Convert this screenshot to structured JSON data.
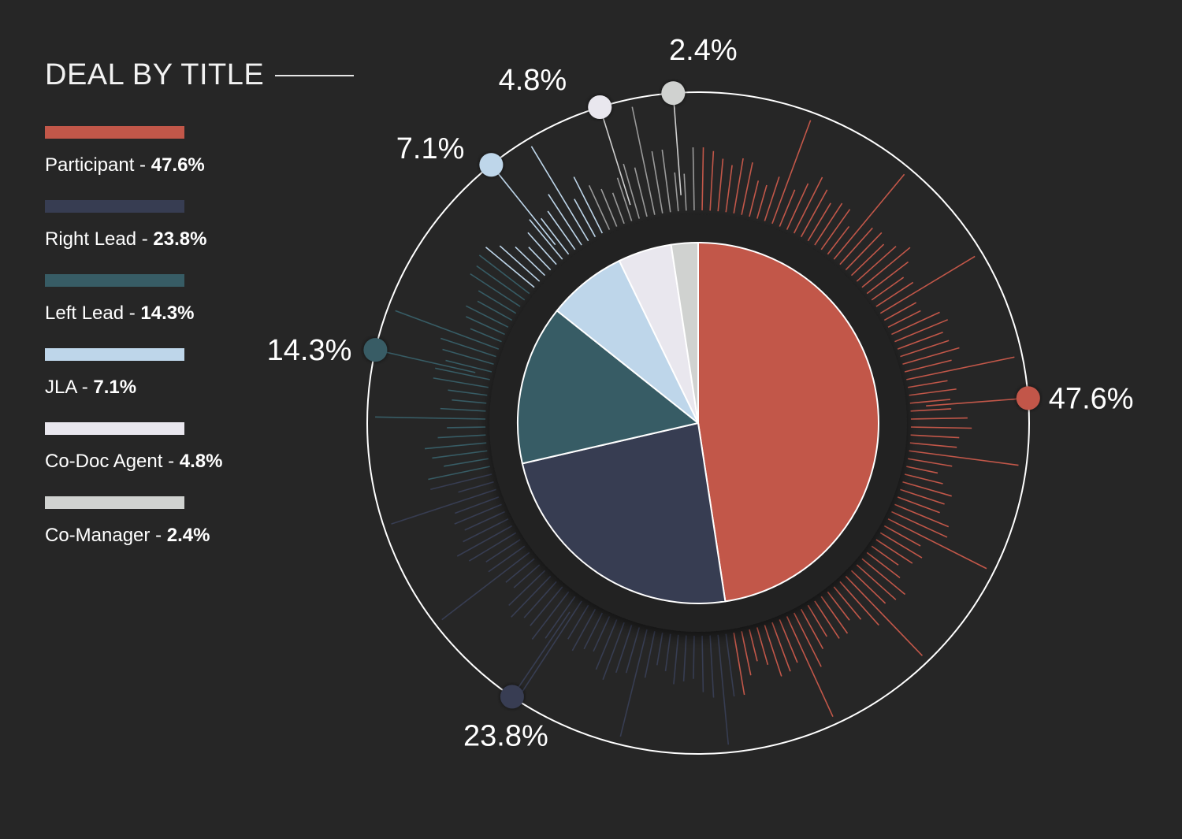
{
  "chart_data": {
    "type": "pie",
    "title": "DEAL BY TITLE",
    "series": [
      {
        "name": "Participant",
        "value": 47.6,
        "value_label": "47.6%",
        "legend_value": "47.6%",
        "color": "#c25749"
      },
      {
        "name": "Right Lead",
        "value": 23.8,
        "value_label": "23.8%",
        "legend_value": "23.8%",
        "color": "#373d52"
      },
      {
        "name": "Left Lead",
        "value": 14.3,
        "value_label": "14.3%",
        "legend_value": "14.3%",
        "color": "#375c65"
      },
      {
        "name": "JLA",
        "value": 7.1,
        "value_label": "7.1%",
        "legend_value": "7.1%",
        "color": "#bed6ea"
      },
      {
        "name": "Co-Doc Agent",
        "value": 4.8,
        "value_label": "4.8%",
        "legend_value": "4.8%",
        "color": "#e9e7ee"
      },
      {
        "name": "Co-Manager",
        "value": 2.4,
        "value_label": "2.4%",
        "legend_value": "2.4%",
        "color": "#d0d2d0"
      }
    ],
    "legend_position": "left",
    "legend_separator": " - ",
    "colors": {
      "background": "#262626",
      "ring": "#ffffff",
      "text": "#ffffff"
    }
  }
}
